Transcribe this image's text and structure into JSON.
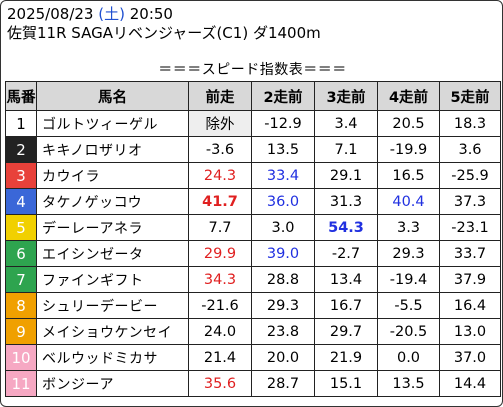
{
  "header": {
    "date": "2025/08/23",
    "dow": "(土)",
    "time": "20:50",
    "race": "佐賀11R SAGAリベンジャーズ(C1) ダ1400m"
  },
  "table_title": "＝＝＝スピード指数表＝＝＝",
  "columns": [
    "馬番",
    "馬名",
    "前走",
    "2走前",
    "3走前",
    "4走前",
    "5走前"
  ],
  "gate_colors": {
    "1": "#ffffff",
    "2": "#222222",
    "3": "#e8413a",
    "4": "#3a67d8",
    "5": "#f1d000",
    "6": "#2ea44f",
    "7": "#e87a20",
    "8": "#f08fb3",
    "orange": "#f0a000",
    "pink": "#f6a8c3"
  },
  "rows": [
    {
      "num": "1",
      "name": "ゴルトツィーゲル",
      "v": [
        "除外",
        "-12.9",
        "3.4",
        "20.5",
        "18.3"
      ],
      "s": [
        "disq",
        "",
        "",
        "",
        ""
      ],
      "color": "#ffffff",
      "numcolor": "#000000"
    },
    {
      "num": "2",
      "name": "キキノロザリオ",
      "v": [
        "-3.6",
        "13.5",
        "7.1",
        "-19.9",
        "3.6"
      ],
      "s": [
        "",
        "",
        "",
        "",
        ""
      ],
      "color": "#222222",
      "numcolor": "#ffffff"
    },
    {
      "num": "3",
      "name": "カウイラ",
      "v": [
        "24.3",
        "33.4",
        "29.1",
        "16.5",
        "-25.9"
      ],
      "s": [
        "red",
        "blue",
        "",
        "",
        ""
      ],
      "color": "#e8413a",
      "numcolor": "#ffffff"
    },
    {
      "num": "4",
      "name": "タケノゲッコウ",
      "v": [
        "41.7",
        "36.0",
        "31.3",
        "40.4",
        "37.3"
      ],
      "s": [
        "red bold",
        "blue",
        "",
        "blue",
        ""
      ],
      "color": "#3a67d8",
      "numcolor": "#ffffff"
    },
    {
      "num": "5",
      "name": "デーレーアネラ",
      "v": [
        "7.7",
        "3.0",
        "54.3",
        "3.3",
        "-23.1"
      ],
      "s": [
        "",
        "",
        "blue bold",
        "",
        ""
      ],
      "color": "#f1d000",
      "numcolor": "#ffffff"
    },
    {
      "num": "6",
      "name": "エイシンゼータ",
      "v": [
        "29.9",
        "39.0",
        "-2.7",
        "29.3",
        "33.7"
      ],
      "s": [
        "red",
        "blue",
        "",
        "",
        ""
      ],
      "color": "#2ea44f",
      "numcolor": "#ffffff"
    },
    {
      "num": "7",
      "name": "ファインギフト",
      "v": [
        "34.3",
        "28.8",
        "13.4",
        "-19.4",
        "37.9"
      ],
      "s": [
        "red",
        "",
        "",
        "",
        ""
      ],
      "color": "#2ea44f",
      "numcolor": "#ffffff"
    },
    {
      "num": "8",
      "name": "シュリーデービー",
      "v": [
        "-21.6",
        "29.3",
        "16.7",
        "-5.5",
        "16.4"
      ],
      "s": [
        "",
        "",
        "",
        "",
        ""
      ],
      "color": "#f0a000",
      "numcolor": "#ffffff"
    },
    {
      "num": "9",
      "name": "メイショウケンセイ",
      "v": [
        "24.0",
        "23.8",
        "29.7",
        "-20.5",
        "13.0"
      ],
      "s": [
        "",
        "",
        "",
        "",
        ""
      ],
      "color": "#f0a000",
      "numcolor": "#ffffff"
    },
    {
      "num": "10",
      "name": "ベルウッドミカサ",
      "v": [
        "21.4",
        "20.0",
        "21.9",
        "0.0",
        "37.0"
      ],
      "s": [
        "",
        "",
        "",
        "",
        ""
      ],
      "color": "#f6a8c3",
      "numcolor": "#ffffff"
    },
    {
      "num": "11",
      "name": "ボンジーア",
      "v": [
        "35.6",
        "28.7",
        "15.1",
        "13.5",
        "14.4"
      ],
      "s": [
        "red",
        "",
        "",
        "",
        ""
      ],
      "color": "#f6a8c3",
      "numcolor": "#ffffff"
    }
  ]
}
